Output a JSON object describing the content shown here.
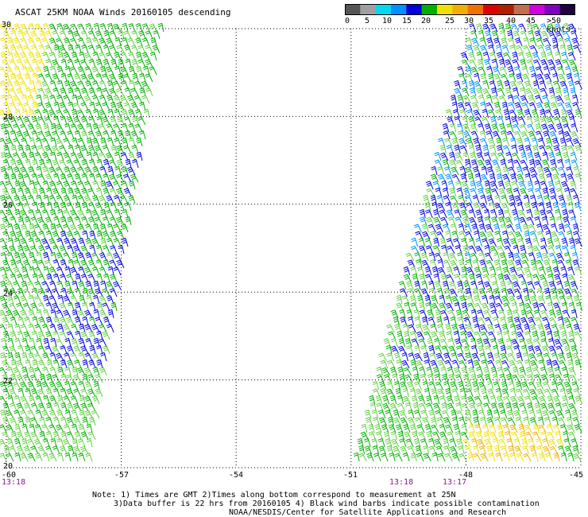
{
  "title": "ASCAT 25KM NOAA Winds 20160105 descending",
  "colorbar": {
    "colors": [
      "#555555",
      "#a0a0a0",
      "#00d8f0",
      "#0090ff",
      "#0000e0",
      "#00b000",
      "#f0e000",
      "#f0b000",
      "#f07000",
      "#e00000",
      "#b02000",
      "#c07050",
      "#d000e0",
      "#8000c0",
      "#200040"
    ],
    "labels": [
      "0",
      "5",
      "10",
      "15",
      "20",
      "25",
      "30",
      "35",
      "40",
      "45",
      ">50 knots"
    ]
  },
  "axes": {
    "lat_labels": [
      "30",
      "28",
      "26",
      "24",
      "22",
      "20"
    ],
    "lon_labels": [
      "-60",
      "-57",
      "-54",
      "-51",
      "-48",
      "-45"
    ],
    "lat_range": [
      20,
      30
    ],
    "lon_range": [
      -60,
      -45
    ],
    "grid": "dotted"
  },
  "times": [
    "13:18",
    "13:18",
    "13:17"
  ],
  "notes": [
    "Note: 1) Times are GMT 2)Times along bottom correspond to measurement at 25N",
    "3)Data buffer is 22 hrs from 20160105 4) Black wind barbs indicate possible contamination",
    "NOAA/NESDIS/Center for Satellite Applications and Research"
  ],
  "barb_colors": {
    "green": "#00b000",
    "light_green": "#60d040",
    "blue": "#0000e0",
    "light_blue": "#0090ff",
    "yellow": "#f0e000",
    "orange": "#f0b000"
  }
}
